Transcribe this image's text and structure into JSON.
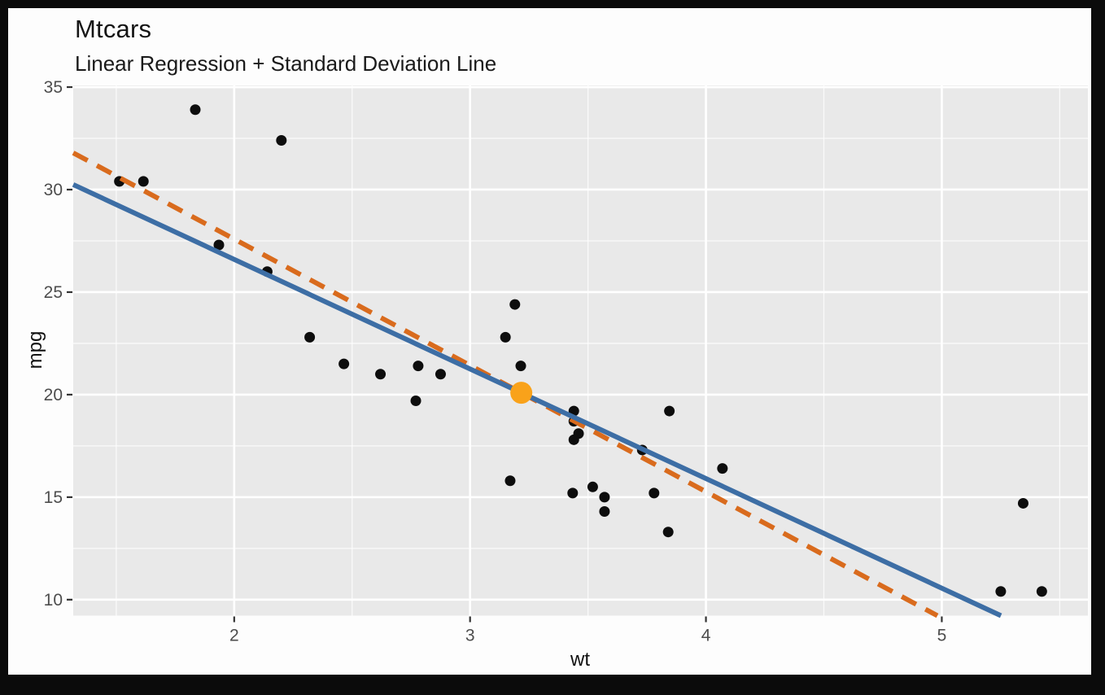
{
  "chart_data": {
    "type": "scatter",
    "title": "Mtcars",
    "subtitle": "Linear Regression + Standard Deviation Line",
    "xlabel": "wt",
    "ylabel": "mpg",
    "xlim": [
      1.3175,
      5.6195
    ],
    "ylim": [
      9.22,
      35.08
    ],
    "x_ticks": [
      2,
      3,
      4,
      5
    ],
    "y_ticks": [
      10,
      15,
      20,
      25,
      30,
      35
    ],
    "x_minor_ticks": [
      1.5,
      2.5,
      3.5,
      4.5,
      5.5
    ],
    "y_minor_ticks": [
      12.5,
      17.5,
      22.5,
      27.5,
      32.5
    ],
    "grid": "white major and minor gridlines on grey panel",
    "legend": "none",
    "points": [
      [
        2.62,
        21.0
      ],
      [
        2.875,
        21.0
      ],
      [
        2.32,
        22.8
      ],
      [
        3.215,
        21.4
      ],
      [
        3.44,
        18.7
      ],
      [
        3.46,
        18.1
      ],
      [
        3.57,
        14.3
      ],
      [
        3.19,
        24.4
      ],
      [
        3.15,
        22.8
      ],
      [
        3.44,
        19.2
      ],
      [
        3.44,
        17.8
      ],
      [
        4.07,
        16.4
      ],
      [
        3.73,
        17.3
      ],
      [
        3.78,
        15.2
      ],
      [
        5.25,
        10.4
      ],
      [
        5.424,
        10.4
      ],
      [
        5.345,
        14.7
      ],
      [
        2.2,
        32.4
      ],
      [
        1.615,
        30.4
      ],
      [
        1.835,
        33.9
      ],
      [
        2.465,
        21.5
      ],
      [
        3.52,
        15.5
      ],
      [
        3.435,
        15.2
      ],
      [
        3.84,
        13.3
      ],
      [
        3.845,
        19.2
      ],
      [
        1.935,
        27.3
      ],
      [
        2.14,
        26.0
      ],
      [
        1.513,
        30.4
      ],
      [
        3.17,
        15.8
      ],
      [
        2.77,
        19.7
      ],
      [
        3.57,
        15.0
      ],
      [
        2.78,
        21.4
      ]
    ],
    "mean_point": {
      "x": 3.2172,
      "y": 20.0906
    },
    "lines": [
      {
        "name": "sd-line",
        "x1": 1.3175,
        "y1": 31.792,
        "x2": 4.9813,
        "y2": 9.22,
        "dashed": true,
        "color": "#d96b1d"
      },
      {
        "name": "regression-line",
        "x1": 1.3175,
        "y1": 30.244,
        "x2": 5.2508,
        "y2": 9.22,
        "dashed": false,
        "color": "#3d6ea5"
      }
    ],
    "colors": {
      "panel_background": "#e9e9e9",
      "gridline": "#ffffff",
      "point": "#0d0d0d",
      "mean_point": "#f9a21a",
      "regression_line": "#3d6ea5",
      "sd_line": "#d96b1d",
      "tick_label": "#4d4d4d",
      "tick_mark": "#333333"
    }
  }
}
